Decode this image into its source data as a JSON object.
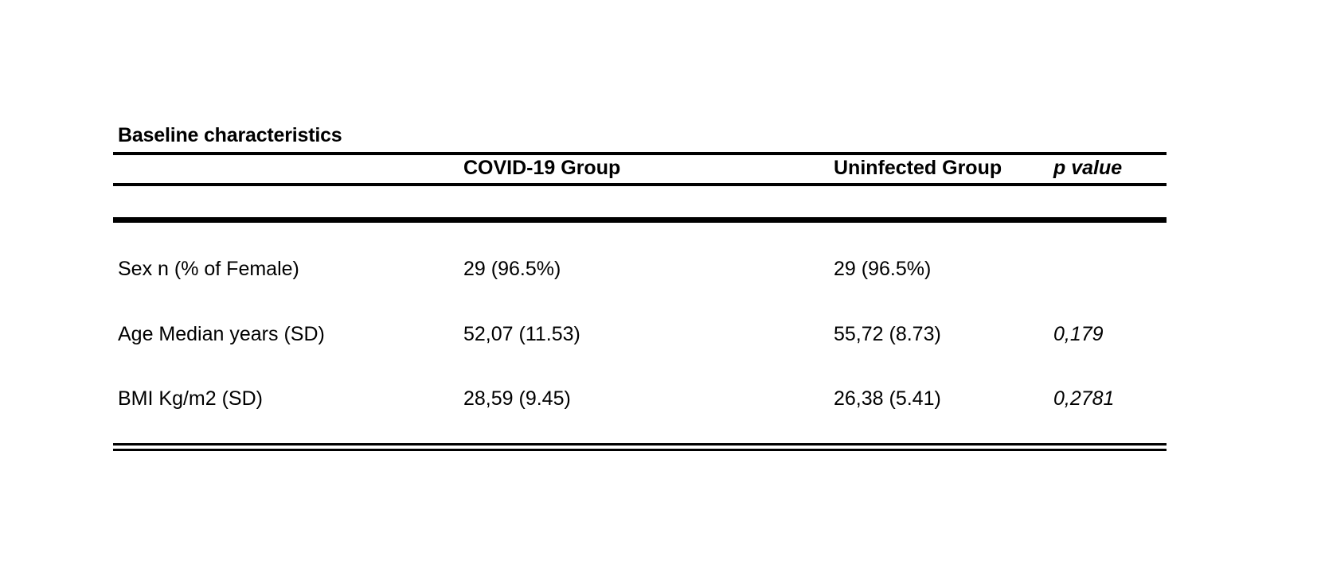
{
  "table": {
    "title": "Baseline characteristics",
    "headers": [
      "",
      "COVID-19 Group",
      "Uninfected Group",
      "p value"
    ],
    "rows": [
      {
        "label": "Sex n (% of Female)",
        "covid": "29 (96.5%)",
        "uninfected": "29 (96.5%)",
        "p": ""
      },
      {
        "label": "Age Median years (SD)",
        "covid": "52,07 (11.53)",
        "uninfected": "55,72 (8.73)",
        "p": "0,179"
      },
      {
        "label": "BMI Kg/m2 (SD)",
        "covid": "28,59 (9.45)",
        "uninfected": "26,38 (5.41)",
        "p": "0,2781"
      }
    ]
  }
}
